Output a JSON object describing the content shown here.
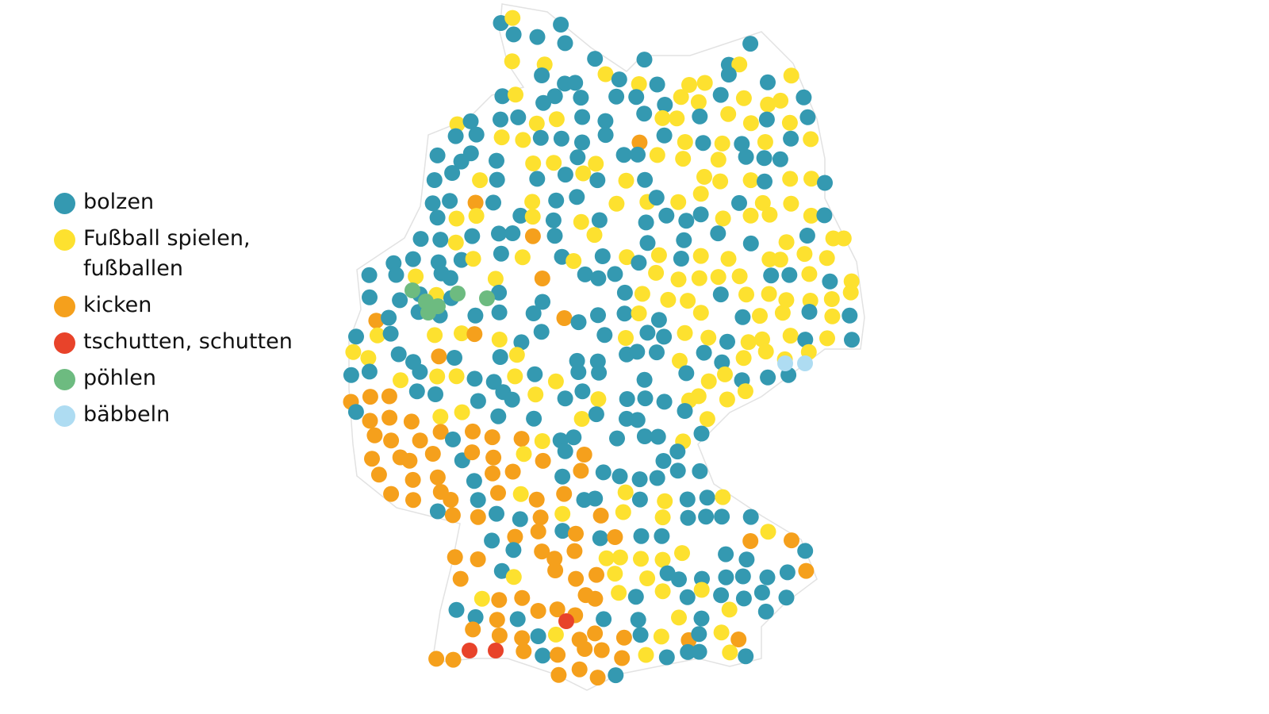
{
  "legend": {
    "items": [
      {
        "label": "bolzen",
        "color": "#3499b1"
      },
      {
        "label": "Fußball spielen, fußballen",
        "color": "#fde12f"
      },
      {
        "label": "kicken",
        "color": "#f5a01c"
      },
      {
        "label": "tschutten, schutten",
        "color": "#e8432a"
      },
      {
        "label": "pöhlen",
        "color": "#6dbb80"
      },
      {
        "label": "bäbbeln",
        "color": "#aedcf2"
      }
    ]
  }
}
